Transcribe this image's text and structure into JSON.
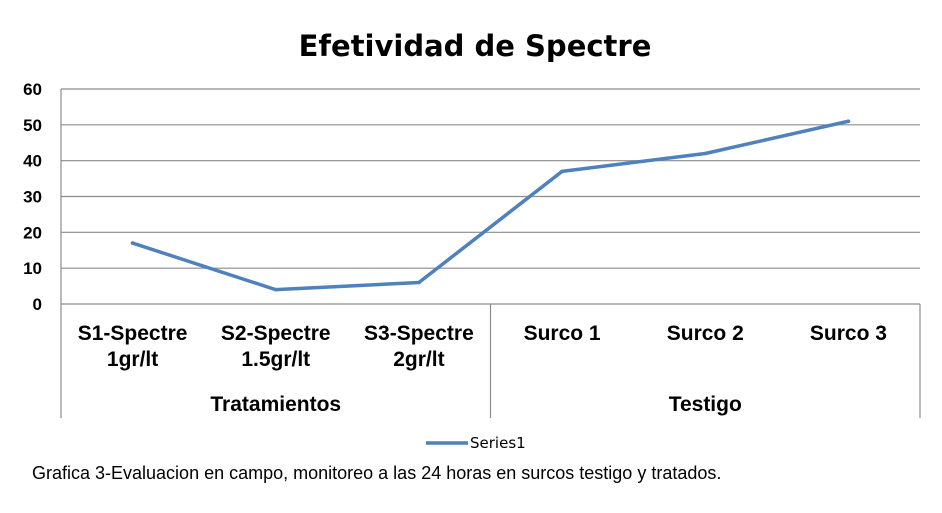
{
  "chart_data": {
    "type": "line",
    "title": "Efetividad de Spectre",
    "categories": [
      [
        "S1-Spectre",
        "1gr/lt"
      ],
      [
        "S2-Spectre",
        "1.5gr/lt"
      ],
      [
        "S3-Spectre",
        "2gr/lt"
      ],
      [
        "Surco 1"
      ],
      [
        "Surco 2"
      ],
      [
        "Surco 3"
      ]
    ],
    "groups": [
      {
        "label": "Tratamientos",
        "span": 3
      },
      {
        "label": "Testigo",
        "span": 3
      }
    ],
    "series": [
      {
        "name": "Series1",
        "color": "#4f81bd",
        "values": [
          17,
          4,
          6,
          37,
          42,
          51
        ]
      }
    ],
    "ylim": [
      0,
      60
    ],
    "yticks": [
      0,
      10,
      20,
      30,
      40,
      50,
      60
    ],
    "grid": true,
    "legend": "bottom"
  },
  "caption": "Grafica 3-Evaluacion en campo, monitoreo a las 24 horas en surcos testigo y tratados."
}
